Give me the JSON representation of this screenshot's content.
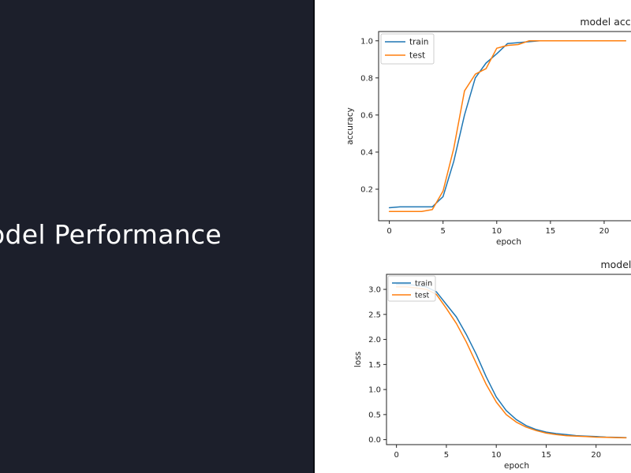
{
  "slide": {
    "title": "odel Performance"
  },
  "colors": {
    "train": "#1f77b4",
    "test": "#ff7f0e",
    "background_left": "#1c1f2b"
  },
  "chart_data": [
    {
      "type": "line",
      "title": "model accuracy",
      "xlabel": "epoch",
      "ylabel": "accuracy",
      "xlim": [
        -1,
        22.5
      ],
      "ylim": [
        0.03,
        1.05
      ],
      "xticks": [
        0,
        5,
        10,
        15,
        20
      ],
      "yticks": [
        0.2,
        0.4,
        0.6,
        0.8,
        1.0
      ],
      "ytick_labels": [
        "0.2",
        "0.4",
        "0.6",
        "0.8",
        "1.0"
      ],
      "legend_position": "top-left",
      "series": [
        {
          "name": "train",
          "color": "#1f77b4",
          "x": [
            0,
            1,
            2,
            3,
            4,
            5,
            6,
            7,
            8,
            9,
            10,
            11,
            12,
            13,
            14,
            15,
            16,
            17,
            18,
            19,
            20,
            21,
            22
          ],
          "y": [
            0.1,
            0.105,
            0.105,
            0.105,
            0.105,
            0.16,
            0.35,
            0.6,
            0.8,
            0.88,
            0.93,
            0.985,
            0.99,
            0.995,
            1.0,
            1.0,
            1.0,
            1.0,
            1.0,
            1.0,
            1.0,
            1.0,
            1.0
          ]
        },
        {
          "name": "test",
          "color": "#ff7f0e",
          "x": [
            0,
            1,
            2,
            3,
            4,
            5,
            6,
            7,
            8,
            9,
            10,
            11,
            12,
            13,
            14,
            15,
            16,
            17,
            18,
            19,
            20,
            21,
            22
          ],
          "y": [
            0.08,
            0.08,
            0.08,
            0.08,
            0.09,
            0.19,
            0.42,
            0.73,
            0.82,
            0.85,
            0.96,
            0.975,
            0.98,
            1.0,
            1.0,
            1.0,
            1.0,
            1.0,
            1.0,
            1.0,
            1.0,
            1.0,
            1.0
          ]
        }
      ]
    },
    {
      "type": "line",
      "title": "model loss",
      "xlabel": "epoch",
      "ylabel": "loss",
      "xlim": [
        -1,
        23.5
      ],
      "ylim": [
        -0.1,
        3.3
      ],
      "xticks": [
        0,
        5,
        10,
        15,
        20
      ],
      "yticks": [
        0.0,
        0.5,
        1.0,
        1.5,
        2.0,
        2.5,
        3.0
      ],
      "ytick_labels": [
        "0.0",
        "0.5",
        "1.0",
        "1.5",
        "2.0",
        "2.5",
        "3.0"
      ],
      "legend_position": "top-left",
      "series": [
        {
          "name": "train",
          "color": "#1f77b4",
          "x": [
            0,
            1,
            2,
            3,
            4,
            5,
            6,
            7,
            8,
            9,
            10,
            11,
            12,
            13,
            14,
            15,
            16,
            17,
            18,
            19,
            20,
            21,
            22,
            23
          ],
          "y": [
            3.1,
            3.1,
            3.08,
            3.05,
            2.95,
            2.7,
            2.45,
            2.1,
            1.7,
            1.25,
            0.85,
            0.58,
            0.4,
            0.28,
            0.2,
            0.15,
            0.12,
            0.1,
            0.08,
            0.07,
            0.06,
            0.05,
            0.045,
            0.04
          ]
        },
        {
          "name": "test",
          "color": "#ff7f0e",
          "x": [
            0,
            1,
            2,
            3,
            4,
            5,
            6,
            7,
            8,
            9,
            10,
            11,
            12,
            13,
            14,
            15,
            16,
            17,
            18,
            19,
            20,
            21,
            22,
            23
          ],
          "y": [
            3.05,
            3.05,
            3.03,
            3.0,
            2.9,
            2.62,
            2.32,
            1.95,
            1.52,
            1.1,
            0.75,
            0.5,
            0.35,
            0.25,
            0.18,
            0.13,
            0.1,
            0.08,
            0.07,
            0.06,
            0.05,
            0.045,
            0.04,
            0.035
          ]
        }
      ]
    }
  ]
}
